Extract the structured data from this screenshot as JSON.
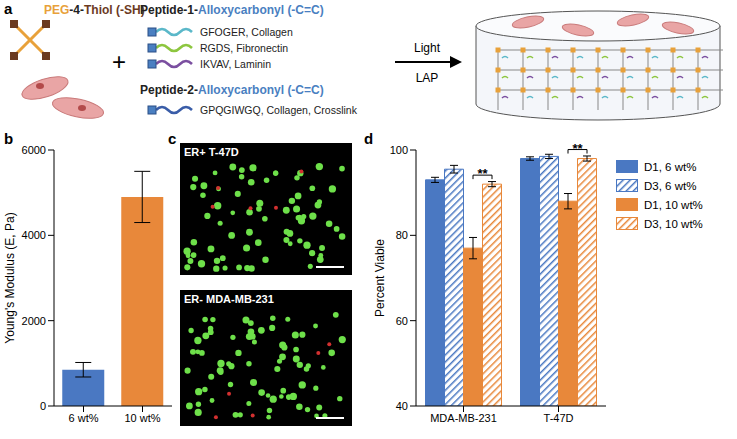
{
  "panel_labels": [
    "a",
    "b",
    "c",
    "d"
  ],
  "diagram": {
    "peg": {
      "parts": [
        "PEG",
        "-4-",
        "Thiol (-SH)"
      ]
    },
    "plus": "+",
    "peptide_1": {
      "parts": [
        "Peptide-1-",
        "Alloxycarbonyl (-C=C)"
      ],
      "items": [
        {
          "label": "GFOGER, Collagen",
          "color": "#5bb8c9"
        },
        {
          "label": "RGDS, Fibronectin",
          "color": "#8dc63f"
        },
        {
          "label": "IKVAV, Laminin",
          "color": "#7b4fa0"
        }
      ]
    },
    "peptide_2": {
      "parts": [
        "Peptide-2-",
        "Alloxycarbonyl (-C=C)"
      ],
      "items": [
        {
          "label": "GPQGIWGQ, Collagen, Crosslink",
          "color": "#3a5da8"
        }
      ]
    },
    "arrow": {
      "above": "Light",
      "below": "LAP"
    }
  },
  "images": [
    {
      "label": "ER+ T-47D"
    },
    {
      "label": "ER- MDA-MB-231"
    }
  ],
  "chart_data": [
    {
      "type": "bar",
      "categories": [
        "6 wt%",
        "10 wt%"
      ],
      "values": [
        850,
        4900
      ],
      "errors": [
        170,
        600
      ],
      "colors": [
        "#4a78c2",
        "#e8883a"
      ],
      "ylabel": "Young's Modulus (E, Pa)",
      "ylim": [
        0,
        6000
      ],
      "yticks": [
        0,
        2000,
        4000,
        6000
      ]
    },
    {
      "type": "bar",
      "categories": [
        "MDA-MB-231",
        "T-47D"
      ],
      "ylabel": "Percent Viable",
      "ylim": [
        40,
        100
      ],
      "yticks": [
        40,
        60,
        80,
        100
      ],
      "legend": "right",
      "series": [
        {
          "name": "D1, 6 wt%",
          "color": "#4a78c2",
          "values": [
            93,
            98
          ],
          "errors": [
            0.6,
            0.4
          ]
        },
        {
          "name": "D3, 6 wt%",
          "color": "#4a78c2",
          "values": [
            95.5,
            98.5
          ],
          "errors": [
            0.9,
            0.5
          ]
        },
        {
          "name": "D1, 10 wt%",
          "color": "#e8883a",
          "values": [
            77,
            88
          ],
          "errors": [
            2.5,
            1.8
          ]
        },
        {
          "name": "D3, 10 wt%",
          "color": "#e8883a",
          "values": [
            92,
            98
          ],
          "errors": [
            0.6,
            0.6
          ]
        }
      ],
      "annotations": [
        {
          "text": "**",
          "category": "MDA-MB-231",
          "between": [
            "D1, 10 wt%",
            "D3, 10 wt%"
          ]
        },
        {
          "text": "**",
          "category": "T-47D",
          "between": [
            "D1, 10 wt%",
            "D3, 10 wt%"
          ]
        }
      ]
    }
  ]
}
